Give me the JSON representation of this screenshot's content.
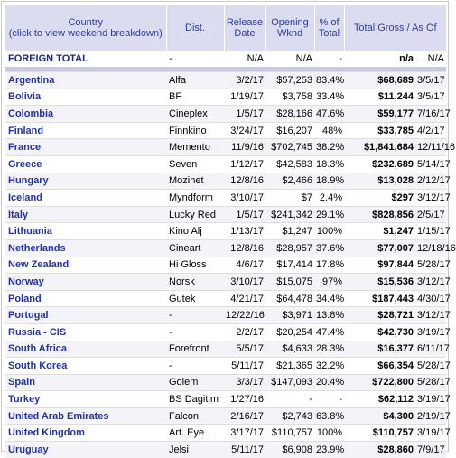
{
  "headers": {
    "country": "Country",
    "country_hint": "(click to view weekend breakdown)",
    "dist": "Dist.",
    "release": "Release Date",
    "opening": "Opening Wknd",
    "pct": "% of Total",
    "total": "Total Gross / As Of"
  },
  "foreign": {
    "country": "FOREIGN TOTAL",
    "dist": "-",
    "release": "N/A",
    "opening": "N/A",
    "pct": "-",
    "total": "n/a",
    "asof": "N/A"
  },
  "rows": [
    {
      "country": "Argentina",
      "dist": "Alfa",
      "release": "3/2/17",
      "opening": "$57,253",
      "pct": "83.4%",
      "total": "$68,689",
      "asof": "3/5/17"
    },
    {
      "country": "Bolivia",
      "dist": "BF",
      "release": "1/19/17",
      "opening": "$3,758",
      "pct": "33.4%",
      "total": "$11,244",
      "asof": "3/5/17"
    },
    {
      "country": "Colombia",
      "dist": "Cineplex",
      "release": "1/5/17",
      "opening": "$28,166",
      "pct": "47.6%",
      "total": "$59,177",
      "asof": "7/16/17"
    },
    {
      "country": "Finland",
      "dist": "Finnkino",
      "release": "3/24/17",
      "opening": "$16,207",
      "pct": "48%",
      "total": "$33,785",
      "asof": "4/2/17"
    },
    {
      "country": "France",
      "dist": "Memento",
      "release": "11/9/16",
      "opening": "$702,745",
      "pct": "38.2%",
      "total": "$1,841,684",
      "asof": "12/11/16"
    },
    {
      "country": "Greece",
      "dist": "Seven",
      "release": "1/12/17",
      "opening": "$42,583",
      "pct": "18.3%",
      "total": "$232,689",
      "asof": "5/14/17"
    },
    {
      "country": "Hungary",
      "dist": "Mozinet",
      "release": "12/8/16",
      "opening": "$2,466",
      "pct": "18.9%",
      "total": "$13,028",
      "asof": "2/12/17"
    },
    {
      "country": "Iceland",
      "dist": "Myndform",
      "release": "3/10/17",
      "opening": "$7",
      "pct": "2.4%",
      "total": "$297",
      "asof": "3/12/17"
    },
    {
      "country": "Italy",
      "dist": "Lucky Red",
      "release": "1/5/17",
      "opening": "$241,342",
      "pct": "29.1%",
      "total": "$828,856",
      "asof": "2/5/17"
    },
    {
      "country": "Lithuania",
      "dist": "Kino Alj",
      "release": "1/13/17",
      "opening": "$1,247",
      "pct": "100%",
      "total": "$1,247",
      "asof": "1/15/17"
    },
    {
      "country": "Netherlands",
      "dist": "Cineart",
      "release": "12/8/16",
      "opening": "$28,957",
      "pct": "37.6%",
      "total": "$77,007",
      "asof": "12/18/16"
    },
    {
      "country": "New Zealand",
      "dist": "Hi Gloss",
      "release": "4/6/17",
      "opening": "$17,414",
      "pct": "17.8%",
      "total": "$97,844",
      "asof": "5/28/17"
    },
    {
      "country": "Norway",
      "dist": "Norsk",
      "release": "3/10/17",
      "opening": "$15,075",
      "pct": "97%",
      "total": "$15,536",
      "asof": "3/12/17"
    },
    {
      "country": "Poland",
      "dist": "Gutek",
      "release": "4/21/17",
      "opening": "$64,478",
      "pct": "34.4%",
      "total": "$187,443",
      "asof": "4/30/17"
    },
    {
      "country": "Portugal",
      "dist": "-",
      "release": "12/22/16",
      "opening": "$3,971",
      "pct": "13.8%",
      "total": "$28,721",
      "asof": "3/12/17"
    },
    {
      "country": "Russia - CIS",
      "dist": "-",
      "release": "2/2/17",
      "opening": "$20,254",
      "pct": "47.4%",
      "total": "$42,730",
      "asof": "3/19/17"
    },
    {
      "country": "South Africa",
      "dist": "Forefront",
      "release": "5/5/17",
      "opening": "$4,633",
      "pct": "28.3%",
      "total": "$16,377",
      "asof": "6/11/17"
    },
    {
      "country": "South Korea",
      "dist": "-",
      "release": "5/11/17",
      "opening": "$21,365",
      "pct": "32.2%",
      "total": "$66,354",
      "asof": "5/28/17"
    },
    {
      "country": "Spain",
      "dist": "Golem",
      "release": "3/3/17",
      "opening": "$147,093",
      "pct": "20.4%",
      "total": "$722,800",
      "asof": "5/28/17"
    },
    {
      "country": "Turkey",
      "dist": "BS Dagitim",
      "release": "1/27/16",
      "opening": "-",
      "pct": "-",
      "total": "$62,112",
      "asof": "3/19/17"
    },
    {
      "country": "United Arab Emirates",
      "dist": "Falcon",
      "release": "2/16/17",
      "opening": "$2,743",
      "pct": "63.8%",
      "total": "$4,300",
      "asof": "2/19/17"
    },
    {
      "country": "United Kingdom",
      "dist": "Art. Eye",
      "release": "3/17/17",
      "opening": "$110,757",
      "pct": "100%",
      "total": "$110,757",
      "asof": "3/19/17"
    },
    {
      "country": "Uruguay",
      "dist": "Jelsi",
      "release": "5/11/17",
      "opening": "$6,908",
      "pct": "23.9%",
      "total": "$28,860",
      "asof": "7/9/17"
    }
  ]
}
